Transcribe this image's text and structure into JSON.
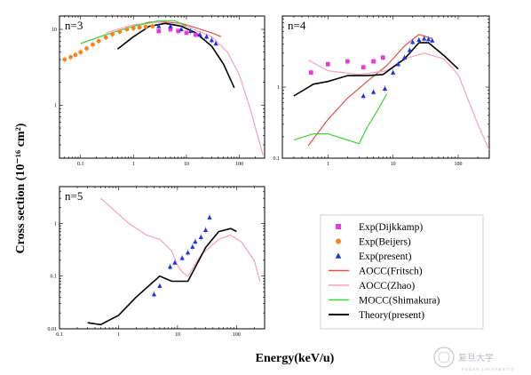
{
  "chart_data": {
    "type": "line",
    "ylabel": "Cross section (10⁻¹⁶ cm²)",
    "xlabel": "Energy(keV/u)",
    "x_scale": "log",
    "y_scale": "log",
    "legend": [
      {
        "name": "Exp(Dijkkamp)",
        "marker": "square",
        "color": "#e23fd6"
      },
      {
        "name": "Exp(Beijers)",
        "marker": "circle",
        "color": "#f0861c"
      },
      {
        "name": "Exp(present)",
        "marker": "triangle",
        "color": "#1f35d6"
      },
      {
        "name": "AOCC(Fritsch)",
        "marker": "line",
        "color": "#e0524a"
      },
      {
        "name": "AOCC(Zhao)",
        "marker": "line",
        "color": "#f2a3bf"
      },
      {
        "name": "MOCC(Shimakura)",
        "marker": "line",
        "color": "#3fd33a"
      },
      {
        "name": "Theory(present)",
        "marker": "line",
        "color": "#000000"
      }
    ],
    "panels": [
      {
        "label": "n=3",
        "xlim": [
          0.04,
          300
        ],
        "ylim": [
          0.2,
          15
        ],
        "xticks": [
          {
            "v": 0.1,
            "t": "0.1"
          },
          {
            "v": 1,
            "t": "1"
          },
          {
            "v": 10,
            "t": "10"
          },
          {
            "v": 100,
            "t": "100"
          }
        ],
        "yticks": [
          {
            "v": 1,
            "t": "1"
          },
          {
            "v": 10,
            "t": "10"
          }
        ],
        "series": {
          "Exp(Dijkkamp)": [
            [
              3,
              9.5
            ],
            [
              5,
              10
            ],
            [
              7,
              9.5
            ],
            [
              10,
              9
            ],
            [
              15,
              8.5
            ]
          ],
          "Exp(Beijers)": [
            [
              0.05,
              4.0
            ],
            [
              0.065,
              4.3
            ],
            [
              0.08,
              4.6
            ],
            [
              0.1,
              5.0
            ],
            [
              0.13,
              5.6
            ],
            [
              0.17,
              6.3
            ],
            [
              0.22,
              7.0
            ],
            [
              0.3,
              7.8
            ],
            [
              0.4,
              8.6
            ],
            [
              0.55,
              9.3
            ],
            [
              0.75,
              10
            ],
            [
              1.0,
              10.3
            ],
            [
              1.3,
              10.6
            ],
            [
              1.7,
              10.8
            ],
            [
              2.3,
              11
            ]
          ],
          "Exp(present)": [
            [
              3,
              11
            ],
            [
              5,
              11
            ],
            [
              8,
              10
            ],
            [
              12,
              9.5
            ],
            [
              18,
              8.5
            ],
            [
              24,
              8
            ],
            [
              30,
              7.2
            ],
            [
              36,
              6.5
            ]
          ],
          "AOCC(Fritsch)": [
            [
              1,
              11
            ],
            [
              2,
              12.5
            ],
            [
              4,
              12.5
            ],
            [
              8,
              12
            ],
            [
              15,
              10.5
            ],
            [
              30,
              9
            ],
            [
              45,
              8
            ]
          ],
          "AOCC(Zhao)": [
            [
              0.3,
              9
            ],
            [
              1,
              11.5
            ],
            [
              3,
              12.5
            ],
            [
              10,
              11
            ],
            [
              30,
              8
            ],
            [
              60,
              5
            ],
            [
              100,
              2.5
            ],
            [
              160,
              0.9
            ],
            [
              220,
              0.4
            ],
            [
              280,
              0.22
            ]
          ],
          "MOCC(Shimakura)": [
            [
              0.1,
              6.5
            ],
            [
              0.3,
              8.5
            ],
            [
              1,
              11
            ],
            [
              3,
              13
            ],
            [
              6,
              13
            ],
            [
              10,
              11
            ]
          ],
          "Theory(present)": [
            [
              0.5,
              5.5
            ],
            [
              1,
              8
            ],
            [
              2,
              11
            ],
            [
              4,
              12
            ],
            [
              8,
              11
            ],
            [
              15,
              9
            ],
            [
              30,
              6
            ],
            [
              50,
              3.5
            ],
            [
              80,
              1.7
            ]
          ]
        }
      },
      {
        "label": "n=4",
        "xlim": [
          0.2,
          300
        ],
        "ylim": [
          0.1,
          10
        ],
        "xticks": [
          {
            "v": 1,
            "t": "1"
          },
          {
            "v": 10,
            "t": "10"
          },
          {
            "v": 100,
            "t": "100"
          }
        ],
        "yticks": [
          {
            "v": 0.1,
            "t": "0.1"
          },
          {
            "v": 1,
            "t": "1"
          }
        ],
        "series": {
          "Exp(Dijkkamp)": [
            [
              0.55,
              1.6
            ],
            [
              1,
              2.1
            ],
            [
              2,
              2.3
            ],
            [
              3.5,
              1.9
            ],
            [
              5,
              2.3
            ],
            [
              7,
              2.6
            ]
          ],
          "Exp(present)": [
            [
              3.5,
              0.75
            ],
            [
              5,
              0.85
            ],
            [
              7.5,
              0.95
            ],
            [
              10,
              1.6
            ],
            [
              12,
              2.1
            ],
            [
              15,
              2.6
            ],
            [
              18,
              3.3
            ],
            [
              20,
              4.3
            ],
            [
              25,
              4.6
            ],
            [
              30,
              4.8
            ],
            [
              35,
              4.7
            ],
            [
              40,
              4.5
            ]
          ],
          "AOCC(Fritsch)": [
            [
              0.5,
              0.15
            ],
            [
              1,
              0.35
            ],
            [
              2,
              0.7
            ],
            [
              4,
              1.2
            ],
            [
              8,
              2
            ],
            [
              15,
              3.8
            ],
            [
              25,
              5.5
            ],
            [
              40,
              4.8
            ]
          ],
          "AOCC(Zhao)": [
            [
              0.5,
              2.4
            ],
            [
              1,
              1.7
            ],
            [
              3,
              1.5
            ],
            [
              8,
              1.7
            ],
            [
              15,
              2.5
            ],
            [
              30,
              3
            ],
            [
              60,
              2.5
            ],
            [
              100,
              1.5
            ],
            [
              200,
              0.3
            ],
            [
              300,
              0.13
            ]
          ],
          "MOCC(Shimakura)": [
            [
              0.3,
              0.18
            ],
            [
              0.6,
              0.22
            ],
            [
              1,
              0.22
            ],
            [
              3,
              0.16
            ],
            [
              4,
              0.27
            ],
            [
              6,
              0.5
            ],
            [
              8,
              0.8
            ]
          ],
          "Theory(present)": [
            [
              0.3,
              0.75
            ],
            [
              0.6,
              1.1
            ],
            [
              1,
              1.2
            ],
            [
              2,
              1.45
            ],
            [
              4,
              1.45
            ],
            [
              7,
              1.5
            ],
            [
              15,
              2.5
            ],
            [
              25,
              4.2
            ],
            [
              35,
              4.2
            ],
            [
              60,
              2.8
            ],
            [
              100,
              1.8
            ]
          ]
        }
      },
      {
        "label": "n=5",
        "xlim": [
          0.1,
          300
        ],
        "ylim": [
          0.01,
          5
        ],
        "xticks": [
          {
            "v": 0.1,
            "t": "0.1"
          },
          {
            "v": 1,
            "t": "1"
          },
          {
            "v": 10,
            "t": "10"
          },
          {
            "v": 100,
            "t": "100"
          }
        ],
        "yticks": [
          {
            "v": 0.01,
            "t": "0.01"
          },
          {
            "v": 0.1,
            "t": "0.1"
          },
          {
            "v": 1,
            "t": "1"
          }
        ],
        "series": {
          "Exp(present)": [
            [
              4,
              0.045
            ],
            [
              5,
              0.065
            ],
            [
              7.5,
              0.15
            ],
            [
              9,
              0.18
            ],
            [
              12,
              0.22
            ],
            [
              15,
              0.28
            ],
            [
              18,
              0.36
            ],
            [
              20,
              0.45
            ],
            [
              25,
              0.55
            ],
            [
              30,
              0.75
            ],
            [
              35,
              1.3
            ]
          ],
          "AOCC(Zhao)": [
            [
              0.5,
              3
            ],
            [
              1.5,
              1
            ],
            [
              3,
              0.6
            ],
            [
              5,
              0.5
            ],
            [
              8,
              0.3
            ],
            [
              10,
              0.16
            ],
            [
              12,
              0.12
            ],
            [
              15,
              0.1
            ],
            [
              25,
              0.25
            ],
            [
              50,
              0.5
            ],
            [
              80,
              0.6
            ],
            [
              120,
              0.45
            ],
            [
              200,
              0.2
            ],
            [
              250,
              0.08
            ]
          ],
          "Theory(present)": [
            [
              0.3,
              0.013
            ],
            [
              0.5,
              0.012
            ],
            [
              1,
              0.018
            ],
            [
              2,
              0.04
            ],
            [
              3,
              0.06
            ],
            [
              5,
              0.1
            ],
            [
              8,
              0.08
            ],
            [
              15,
              0.08
            ],
            [
              30,
              0.35
            ],
            [
              50,
              0.7
            ],
            [
              80,
              0.8
            ],
            [
              100,
              0.7
            ]
          ]
        }
      }
    ]
  },
  "logo": {
    "name": "复旦大学",
    "sub": "FUDAN UNIVERSITY"
  }
}
